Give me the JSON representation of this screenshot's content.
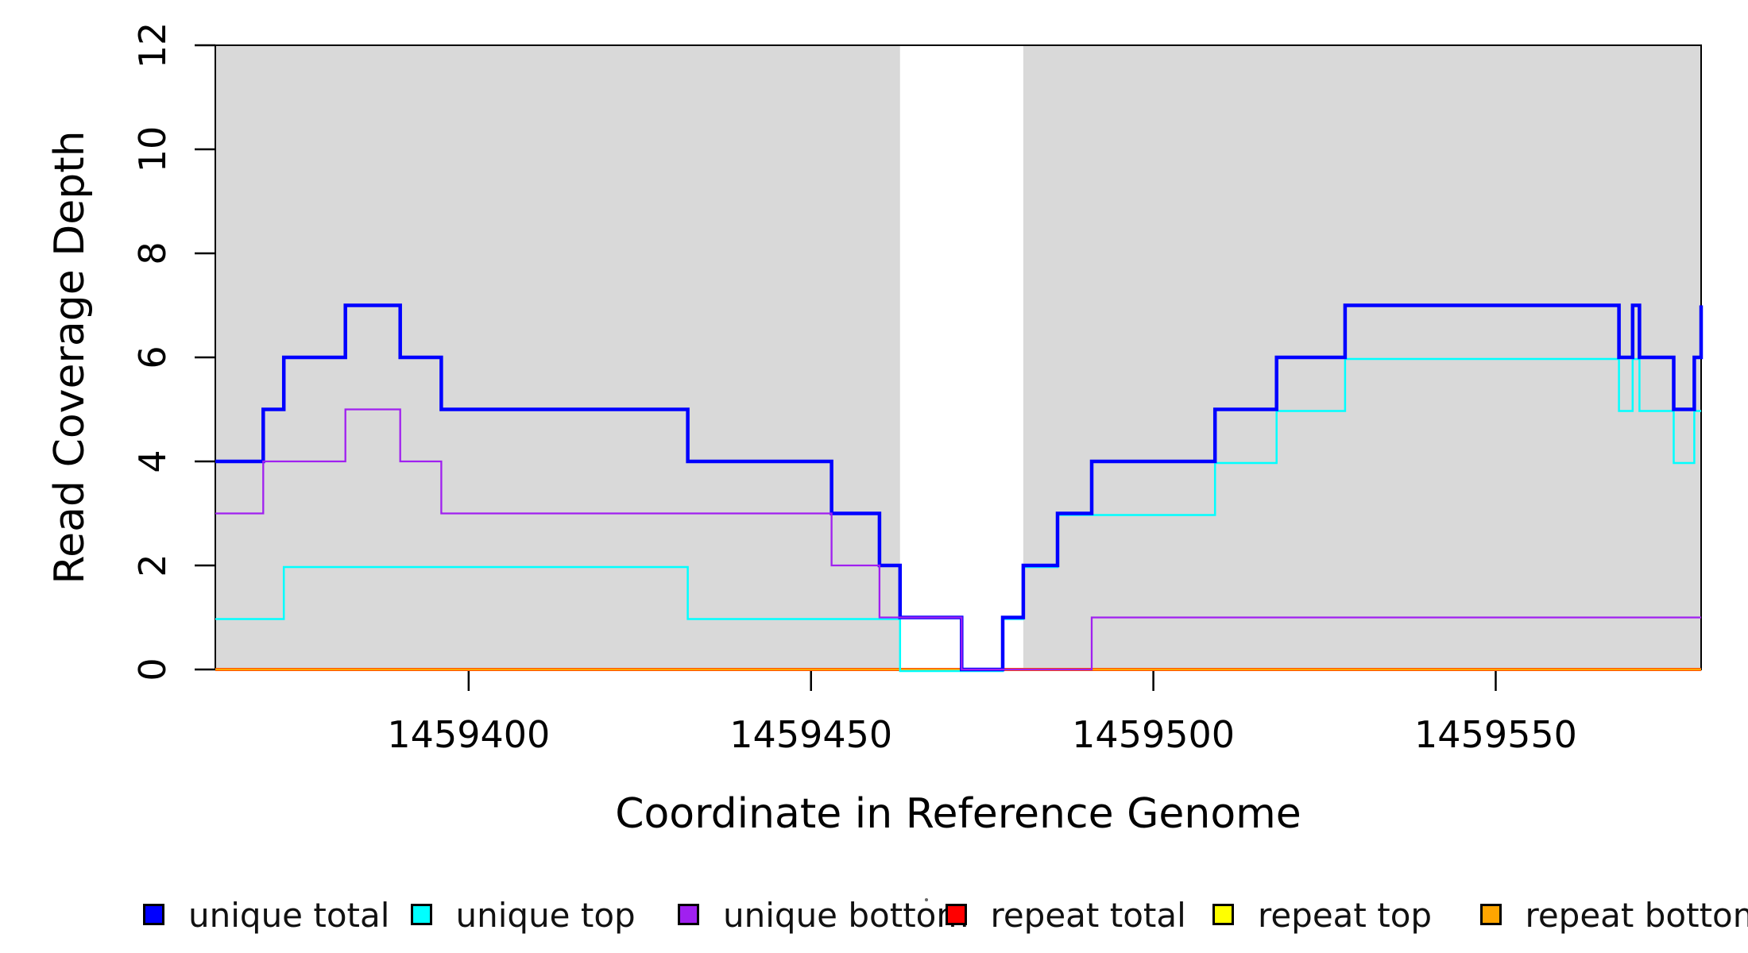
{
  "chart_data": {
    "type": "line",
    "subtype": "step-coverage-plot",
    "title": "",
    "xlabel": "Coordinate in Reference Genome",
    "ylabel": "Read Coverage Depth",
    "xlim": [
      1459363,
      1459580
    ],
    "ylim": [
      0,
      12
    ],
    "x_ticks": [
      1459400,
      1459450,
      1459500,
      1459550
    ],
    "y_ticks": [
      0,
      2,
      4,
      6,
      8,
      10,
      12
    ],
    "grid": false,
    "background_color": "#ffffff",
    "shade_color": "#D9D9D9",
    "shaded_regions": [
      {
        "name": "left-gray-region",
        "x0": 1459363,
        "x1": 1459463
      },
      {
        "name": "right-gray-region",
        "x0": 1459481,
        "x1": 1459580
      }
    ],
    "series": [
      {
        "name": "unique total",
        "color": "#0000FF",
        "width": 4.5,
        "draw_index": 5,
        "dy": 0,
        "segments": [
          [
            1459363,
            4
          ],
          [
            1459370,
            5
          ],
          [
            1459373,
            6
          ],
          [
            1459382,
            7
          ],
          [
            1459390,
            6
          ],
          [
            1459396,
            5
          ],
          [
            1459432,
            4
          ],
          [
            1459453,
            3
          ],
          [
            1459460,
            2
          ],
          [
            1459463,
            1
          ],
          [
            1459472,
            0
          ],
          [
            1459478,
            1
          ],
          [
            1459481,
            2
          ],
          [
            1459486,
            3
          ],
          [
            1459491,
            4
          ],
          [
            1459509,
            5
          ],
          [
            1459518,
            6
          ],
          [
            1459528,
            7
          ],
          [
            1459568,
            6
          ],
          [
            1459570,
            7
          ],
          [
            1459571,
            6
          ],
          [
            1459576,
            5
          ],
          [
            1459579,
            6
          ],
          [
            1459580,
            7
          ]
        ]
      },
      {
        "name": "unique top",
        "color": "#00FFFF",
        "width": 2.5,
        "draw_index": 4,
        "dy": 2,
        "segments": [
          [
            1459363,
            1
          ],
          [
            1459373,
            2
          ],
          [
            1459432,
            1
          ],
          [
            1459463,
            0
          ],
          [
            1459478,
            1
          ],
          [
            1459481,
            2
          ],
          [
            1459486,
            3
          ],
          [
            1459509,
            4
          ],
          [
            1459518,
            5
          ],
          [
            1459528,
            6
          ],
          [
            1459568,
            5
          ],
          [
            1459570,
            6
          ],
          [
            1459571,
            5
          ],
          [
            1459576,
            4
          ],
          [
            1459579,
            5
          ]
        ]
      },
      {
        "name": "unique bottom",
        "color": "#A020F0",
        "width": 2.3,
        "draw_index": 6,
        "dy": 0,
        "segments": [
          [
            1459363,
            3
          ],
          [
            1459370,
            4
          ],
          [
            1459382,
            5
          ],
          [
            1459390,
            4
          ],
          [
            1459396,
            3
          ],
          [
            1459453,
            2
          ],
          [
            1459460,
            1
          ],
          [
            1459472,
            0
          ],
          [
            1459491,
            1
          ]
        ]
      },
      {
        "name": "repeat total",
        "color": "#FF0000",
        "width": 4,
        "draw_index": 1,
        "dy": 0,
        "segments": [
          [
            1459363,
            0
          ]
        ]
      },
      {
        "name": "repeat top",
        "color": "#FFFF00",
        "width": 2.5,
        "draw_index": 2,
        "dy": 0,
        "segments": [
          [
            1459363,
            0
          ]
        ]
      },
      {
        "name": "repeat bottom",
        "color": "#FFA500",
        "width": 3,
        "draw_index": 3,
        "dy": 0,
        "segments": [
          [
            1459363,
            0
          ]
        ]
      }
    ],
    "legend": {
      "position": "bottom",
      "items": [
        {
          "label": "unique total",
          "color": "#0000FF"
        },
        {
          "label": "unique top",
          "color": "#00FFFF"
        },
        {
          "label": "unique bottom",
          "color": "#A020F0"
        },
        {
          "label": "repeat total",
          "color": "#FF0000"
        },
        {
          "label": "repeat top",
          "color": "#FFFF00"
        },
        {
          "label": "repeat bottom",
          "color": "#FFA500"
        }
      ]
    }
  }
}
